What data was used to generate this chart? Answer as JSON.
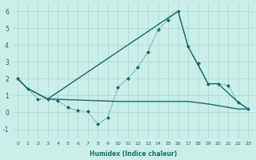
{
  "xlabel": "Humidex (Indice chaleur)",
  "background_color": "#cceee8",
  "line_color": "#1a6b6b",
  "xlim": [
    -0.5,
    23.5
  ],
  "ylim": [
    -1.5,
    6.5
  ],
  "xticks": [
    0,
    1,
    2,
    3,
    4,
    5,
    6,
    7,
    8,
    9,
    10,
    11,
    12,
    13,
    14,
    15,
    16,
    17,
    18,
    19,
    20,
    21,
    22,
    23
  ],
  "yticks": [
    -1,
    0,
    1,
    2,
    3,
    4,
    5,
    6
  ],
  "series": [
    {
      "x": [
        0,
        1,
        2,
        3,
        4,
        5,
        6,
        7,
        8,
        9,
        10,
        11,
        12,
        13,
        14,
        15,
        16,
        17,
        18,
        19,
        20,
        21,
        22,
        23
      ],
      "y": [
        2.0,
        1.4,
        0.8,
        0.8,
        0.7,
        0.3,
        0.1,
        0.05,
        -0.7,
        -0.3,
        1.5,
        2.0,
        2.7,
        3.6,
        4.9,
        5.5,
        6.0,
        3.9,
        2.9,
        1.7,
        1.7,
        1.6,
        0.6,
        0.2
      ],
      "marker": "D",
      "markersize": 2.0,
      "linewidth": 0.8,
      "linestyle": ":"
    },
    {
      "x": [
        0,
        1,
        3,
        16,
        17,
        19,
        20,
        22,
        23
      ],
      "y": [
        2.0,
        1.4,
        0.8,
        6.0,
        3.9,
        1.7,
        1.7,
        0.6,
        0.2
      ],
      "marker": null,
      "linewidth": 1.0,
      "linestyle": "-"
    },
    {
      "x": [
        0,
        1,
        3,
        10,
        16,
        17,
        19,
        20,
        22,
        23
      ],
      "y": [
        2.0,
        1.4,
        0.8,
        0.65,
        0.65,
        0.65,
        0.5,
        0.4,
        0.2,
        0.2
      ],
      "marker": null,
      "linewidth": 1.0,
      "linestyle": "-"
    }
  ]
}
